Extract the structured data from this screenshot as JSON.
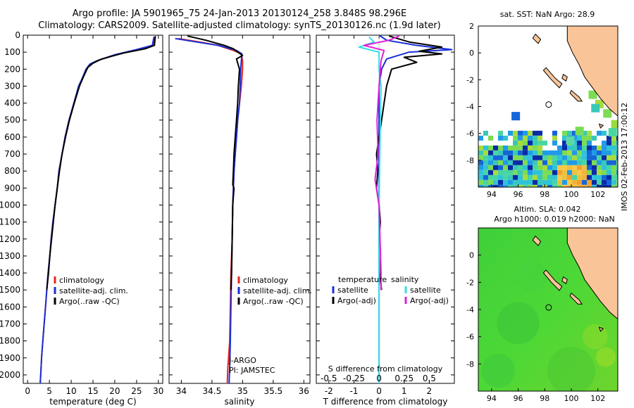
{
  "header": {
    "title1": "Argo profile: JA 5901965_75 24-Jan-2013 20130124_258 3.848S 98.296E",
    "title2": "Climatology: CARS2009. Satellite-adjusted climatology: synTS_20130126.nc (1.9d later)"
  },
  "colors": {
    "climatology": "#e8251f",
    "satellite": "#1a2fd6",
    "argo": "#000000",
    "sat_salinity": "#33e0e8",
    "argo_salinity": "#e020d8",
    "land": "#f9c497"
  },
  "depth_axis": {
    "ticks": [
      0,
      100,
      200,
      300,
      400,
      500,
      600,
      700,
      800,
      900,
      1000,
      1100,
      1200,
      1300,
      1400,
      1500,
      1600,
      1700,
      1800,
      1900,
      2000
    ],
    "max": 2050
  },
  "chart_data": [
    {
      "type": "line",
      "xlabel": "temperature (deg C)",
      "xlim": [
        -1,
        31
      ],
      "xticks": [
        0,
        5,
        10,
        15,
        20,
        25,
        30
      ],
      "ylim": [
        2050,
        0
      ],
      "legend": {
        "placement": "bottom-center",
        "entries": [
          "climatology",
          "satellite-adj. clim.",
          "Argo(..raw -QC)"
        ]
      },
      "series": [
        {
          "name": "climatology",
          "color": "#e8251f",
          "points": [
            [
              29,
              10
            ],
            [
              28.8,
              60
            ],
            [
              26,
              80
            ],
            [
              21,
              110
            ],
            [
              16,
              150
            ],
            [
              14.5,
              170
            ],
            [
              13.5,
              200
            ],
            [
              12.7,
              250
            ],
            [
              11.8,
              300
            ],
            [
              10.7,
              400
            ],
            [
              9.5,
              500
            ],
            [
              8.6,
              600
            ],
            [
              7.9,
              700
            ],
            [
              7.2,
              800
            ],
            [
              6.8,
              900
            ],
            [
              6.3,
              1000
            ],
            [
              5.8,
              1100
            ],
            [
              5.4,
              1200
            ],
            [
              5.1,
              1300
            ],
            [
              4.7,
              1400
            ],
            [
              4.4,
              1500
            ],
            [
              4.1,
              1600
            ],
            [
              3.8,
              1700
            ],
            [
              3.5,
              1800
            ],
            [
              3.2,
              1900
            ],
            [
              3,
              2000
            ],
            [
              2.9,
              2050
            ]
          ]
        },
        {
          "name": "satellite-adj. clim.",
          "color": "#1a2fd6",
          "points": [
            [
              29,
              10
            ],
            [
              28.6,
              60
            ],
            [
              25,
              85
            ],
            [
              20,
              115
            ],
            [
              16,
              150
            ],
            [
              14.3,
              170
            ],
            [
              13.4,
              200
            ],
            [
              12.6,
              250
            ],
            [
              11.7,
              300
            ],
            [
              10.6,
              400
            ],
            [
              9.5,
              500
            ],
            [
              8.6,
              600
            ],
            [
              7.9,
              700
            ],
            [
              7.2,
              800
            ],
            [
              6.8,
              900
            ],
            [
              6.3,
              1000
            ],
            [
              5.8,
              1100
            ],
            [
              5.4,
              1200
            ],
            [
              5.1,
              1300
            ],
            [
              4.7,
              1400
            ],
            [
              4.4,
              1500
            ],
            [
              4.1,
              1600
            ],
            [
              3.8,
              1700
            ],
            [
              3.5,
              1800
            ],
            [
              3.2,
              1900
            ],
            [
              3,
              2000
            ],
            [
              2.9,
              2050
            ]
          ]
        },
        {
          "name": "Argo(..raw -QC)",
          "color": "#000000",
          "points": [
            [
              29.3,
              5
            ],
            [
              29.1,
              60
            ],
            [
              27,
              80
            ],
            [
              22,
              105
            ],
            [
              17,
              140
            ],
            [
              15,
              165
            ],
            [
              13.8,
              190
            ],
            [
              12.9,
              240
            ],
            [
              11.9,
              300
            ],
            [
              10.7,
              400
            ],
            [
              9.6,
              500
            ],
            [
              8.7,
              600
            ],
            [
              7.9,
              700
            ],
            [
              7.3,
              800
            ],
            [
              6.8,
              900
            ],
            [
              6.3,
              1000
            ],
            [
              5.9,
              1100
            ],
            [
              5.5,
              1200
            ],
            [
              5.1,
              1300
            ],
            [
              4.8,
              1400
            ],
            [
              4.4,
              1500
            ]
          ]
        }
      ]
    },
    {
      "type": "line",
      "xlabel": "salinity",
      "xlim": [
        33.8,
        36.1
      ],
      "xticks": [
        34,
        34.5,
        35,
        35.5,
        36
      ],
      "ylim": [
        2050,
        0
      ],
      "legend": {
        "placement": "bottom-right",
        "entries": [
          "climatology",
          "satellite-adj. clim.",
          "Argo(..raw -QC)"
        ]
      },
      "annotation": [
        "J-ARGO",
        "PI: JAMSTEC"
      ],
      "series": [
        {
          "name": "climatology",
          "color": "#e8251f",
          "points": [
            [
              33.95,
              20
            ],
            [
              34.3,
              40
            ],
            [
              34.6,
              60
            ],
            [
              34.85,
              90
            ],
            [
              34.98,
              110
            ],
            [
              35.0,
              150
            ],
            [
              35.0,
              200
            ],
            [
              34.98,
              300
            ],
            [
              34.95,
              400
            ],
            [
              34.92,
              500
            ],
            [
              34.9,
              600
            ],
            [
              34.88,
              700
            ],
            [
              34.86,
              800
            ],
            [
              34.85,
              900
            ],
            [
              34.84,
              1000
            ],
            [
              34.83,
              1200
            ],
            [
              34.81,
              1400
            ],
            [
              34.8,
              1600
            ],
            [
              34.79,
              1800
            ],
            [
              34.76,
              1950
            ],
            [
              34.75,
              2050
            ]
          ]
        },
        {
          "name": "satellite-adj. clim.",
          "color": "#1a2fd6",
          "points": [
            [
              33.9,
              20
            ],
            [
              34.25,
              40
            ],
            [
              34.6,
              60
            ],
            [
              34.9,
              90
            ],
            [
              34.99,
              110
            ],
            [
              34.98,
              150
            ],
            [
              34.97,
              200
            ],
            [
              34.96,
              300
            ],
            [
              34.95,
              400
            ],
            [
              34.92,
              500
            ],
            [
              34.9,
              600
            ],
            [
              34.88,
              700
            ],
            [
              34.86,
              800
            ],
            [
              34.85,
              900
            ],
            [
              34.84,
              1000
            ],
            [
              34.83,
              1200
            ],
            [
              34.82,
              1400
            ],
            [
              34.81,
              1600
            ],
            [
              34.8,
              1800
            ],
            [
              34.79,
              1950
            ],
            [
              34.78,
              2050
            ]
          ]
        },
        {
          "name": "Argo(..raw -QC)",
          "color": "#000000",
          "points": [
            [
              34.1,
              5
            ],
            [
              34.4,
              30
            ],
            [
              34.7,
              60
            ],
            [
              34.85,
              80
            ],
            [
              35.0,
              120
            ],
            [
              34.9,
              140
            ],
            [
              34.95,
              200
            ],
            [
              34.93,
              300
            ],
            [
              34.92,
              400
            ],
            [
              34.9,
              500
            ],
            [
              34.88,
              600
            ],
            [
              34.86,
              700
            ],
            [
              34.85,
              800
            ],
            [
              34.84,
              880
            ],
            [
              34.86,
              900
            ],
            [
              34.84,
              1000
            ],
            [
              34.83,
              1200
            ],
            [
              34.82,
              1400
            ],
            [
              34.81,
              1500
            ]
          ]
        }
      ]
    },
    {
      "type": "line",
      "xlabel": "T difference from climatology",
      "xlim": [
        -2.5,
        3
      ],
      "xticks": [
        -2,
        -1,
        0,
        1,
        2
      ],
      "s_label": "S difference from climatology",
      "s_xlim": [
        -0.625,
        0.75
      ],
      "s_xticks": [
        -0.5,
        -0.25,
        0,
        0.25,
        0.5
      ],
      "ylim": [
        2050,
        0
      ],
      "legend": {
        "placement": "bottom",
        "temperature_title": "temperature",
        "salinity_title": "salinity",
        "temperature_entries": [
          "satellite",
          "Argo(-adj)"
        ],
        "salinity_entries": [
          "satellite",
          "Argo(-adj)"
        ]
      },
      "series": [
        {
          "name": "T satellite",
          "color": "#1a2fd6",
          "points": [
            [
              0,
              0
            ],
            [
              0.3,
              30
            ],
            [
              1.5,
              60
            ],
            [
              2.9,
              85
            ],
            [
              1.2,
              100
            ],
            [
              0.3,
              140
            ],
            [
              0.1,
              200
            ],
            [
              0,
              300
            ],
            [
              0,
              600
            ],
            [
              0,
              1000
            ],
            [
              0,
              1500
            ],
            [
              0,
              2050
            ]
          ]
        },
        {
          "name": "T Argo(-adj)",
          "color": "#000000",
          "points": [
            [
              0.4,
              5
            ],
            [
              1.2,
              40
            ],
            [
              2.5,
              70
            ],
            [
              1.6,
              95
            ],
            [
              2.5,
              110
            ],
            [
              1.0,
              130
            ],
            [
              1.5,
              160
            ],
            [
              0.5,
              200
            ],
            [
              0.3,
              300
            ],
            [
              0.2,
              400
            ],
            [
              0.1,
              500
            ],
            [
              0,
              600
            ],
            [
              -0.1,
              700
            ],
            [
              -0.05,
              800
            ],
            [
              -0.1,
              900
            ],
            [
              0,
              1000
            ],
            [
              0.05,
              1100
            ],
            [
              0,
              1200
            ],
            [
              0,
              1300
            ],
            [
              0.02,
              1400
            ],
            [
              0.1,
              1500
            ]
          ]
        },
        {
          "name": "S satellite",
          "color": "#33e0e8",
          "points": [
            [
              -0.1,
              10
            ],
            [
              -0.05,
              40
            ],
            [
              -0.2,
              70
            ],
            [
              0,
              100
            ],
            [
              0,
              200
            ],
            [
              0.02,
              300
            ],
            [
              0.01,
              600
            ],
            [
              0,
              1000
            ],
            [
              0,
              1500
            ],
            [
              0,
              2050
            ]
          ]
        },
        {
          "name": "S Argo(-adj)",
          "color": "#e020d8",
          "points": [
            [
              0.2,
              5
            ],
            [
              0.1,
              30
            ],
            [
              -0.15,
              60
            ],
            [
              0.05,
              90
            ],
            [
              0.02,
              150
            ],
            [
              0,
              300
            ],
            [
              -0.02,
              500
            ],
            [
              -0.01,
              700
            ],
            [
              -0.04,
              850
            ],
            [
              0,
              1000
            ],
            [
              0.01,
              1200
            ],
            [
              0.02,
              1400
            ],
            [
              0.02,
              1500
            ]
          ]
        }
      ]
    },
    {
      "type": "heatmap",
      "title": "sat. SST: NaN Argo: 28.9",
      "xlim": [
        93,
        103.5
      ],
      "ylim": [
        -10,
        2
      ],
      "xticks": [
        94,
        96,
        98,
        100,
        102
      ],
      "yticks": [
        2,
        0,
        -2,
        -4,
        -6,
        -8
      ],
      "argo_position": [
        98.296,
        -3.848
      ]
    },
    {
      "type": "heatmap",
      "title_line1": "Altim. SLA: 0.042",
      "title_line2": "Argo h1000: 0.019 h2000: NaN",
      "xlim": [
        93,
        103.5
      ],
      "ylim": [
        -10,
        2
      ],
      "xticks": [
        94,
        96,
        98,
        100,
        102
      ],
      "yticks": [
        0,
        -2,
        -4,
        -6,
        -8
      ],
      "argo_position": [
        98.296,
        -3.848
      ]
    }
  ],
  "footer": {
    "stamp": "IMOS 02-Feb-2013 17:00:12"
  }
}
